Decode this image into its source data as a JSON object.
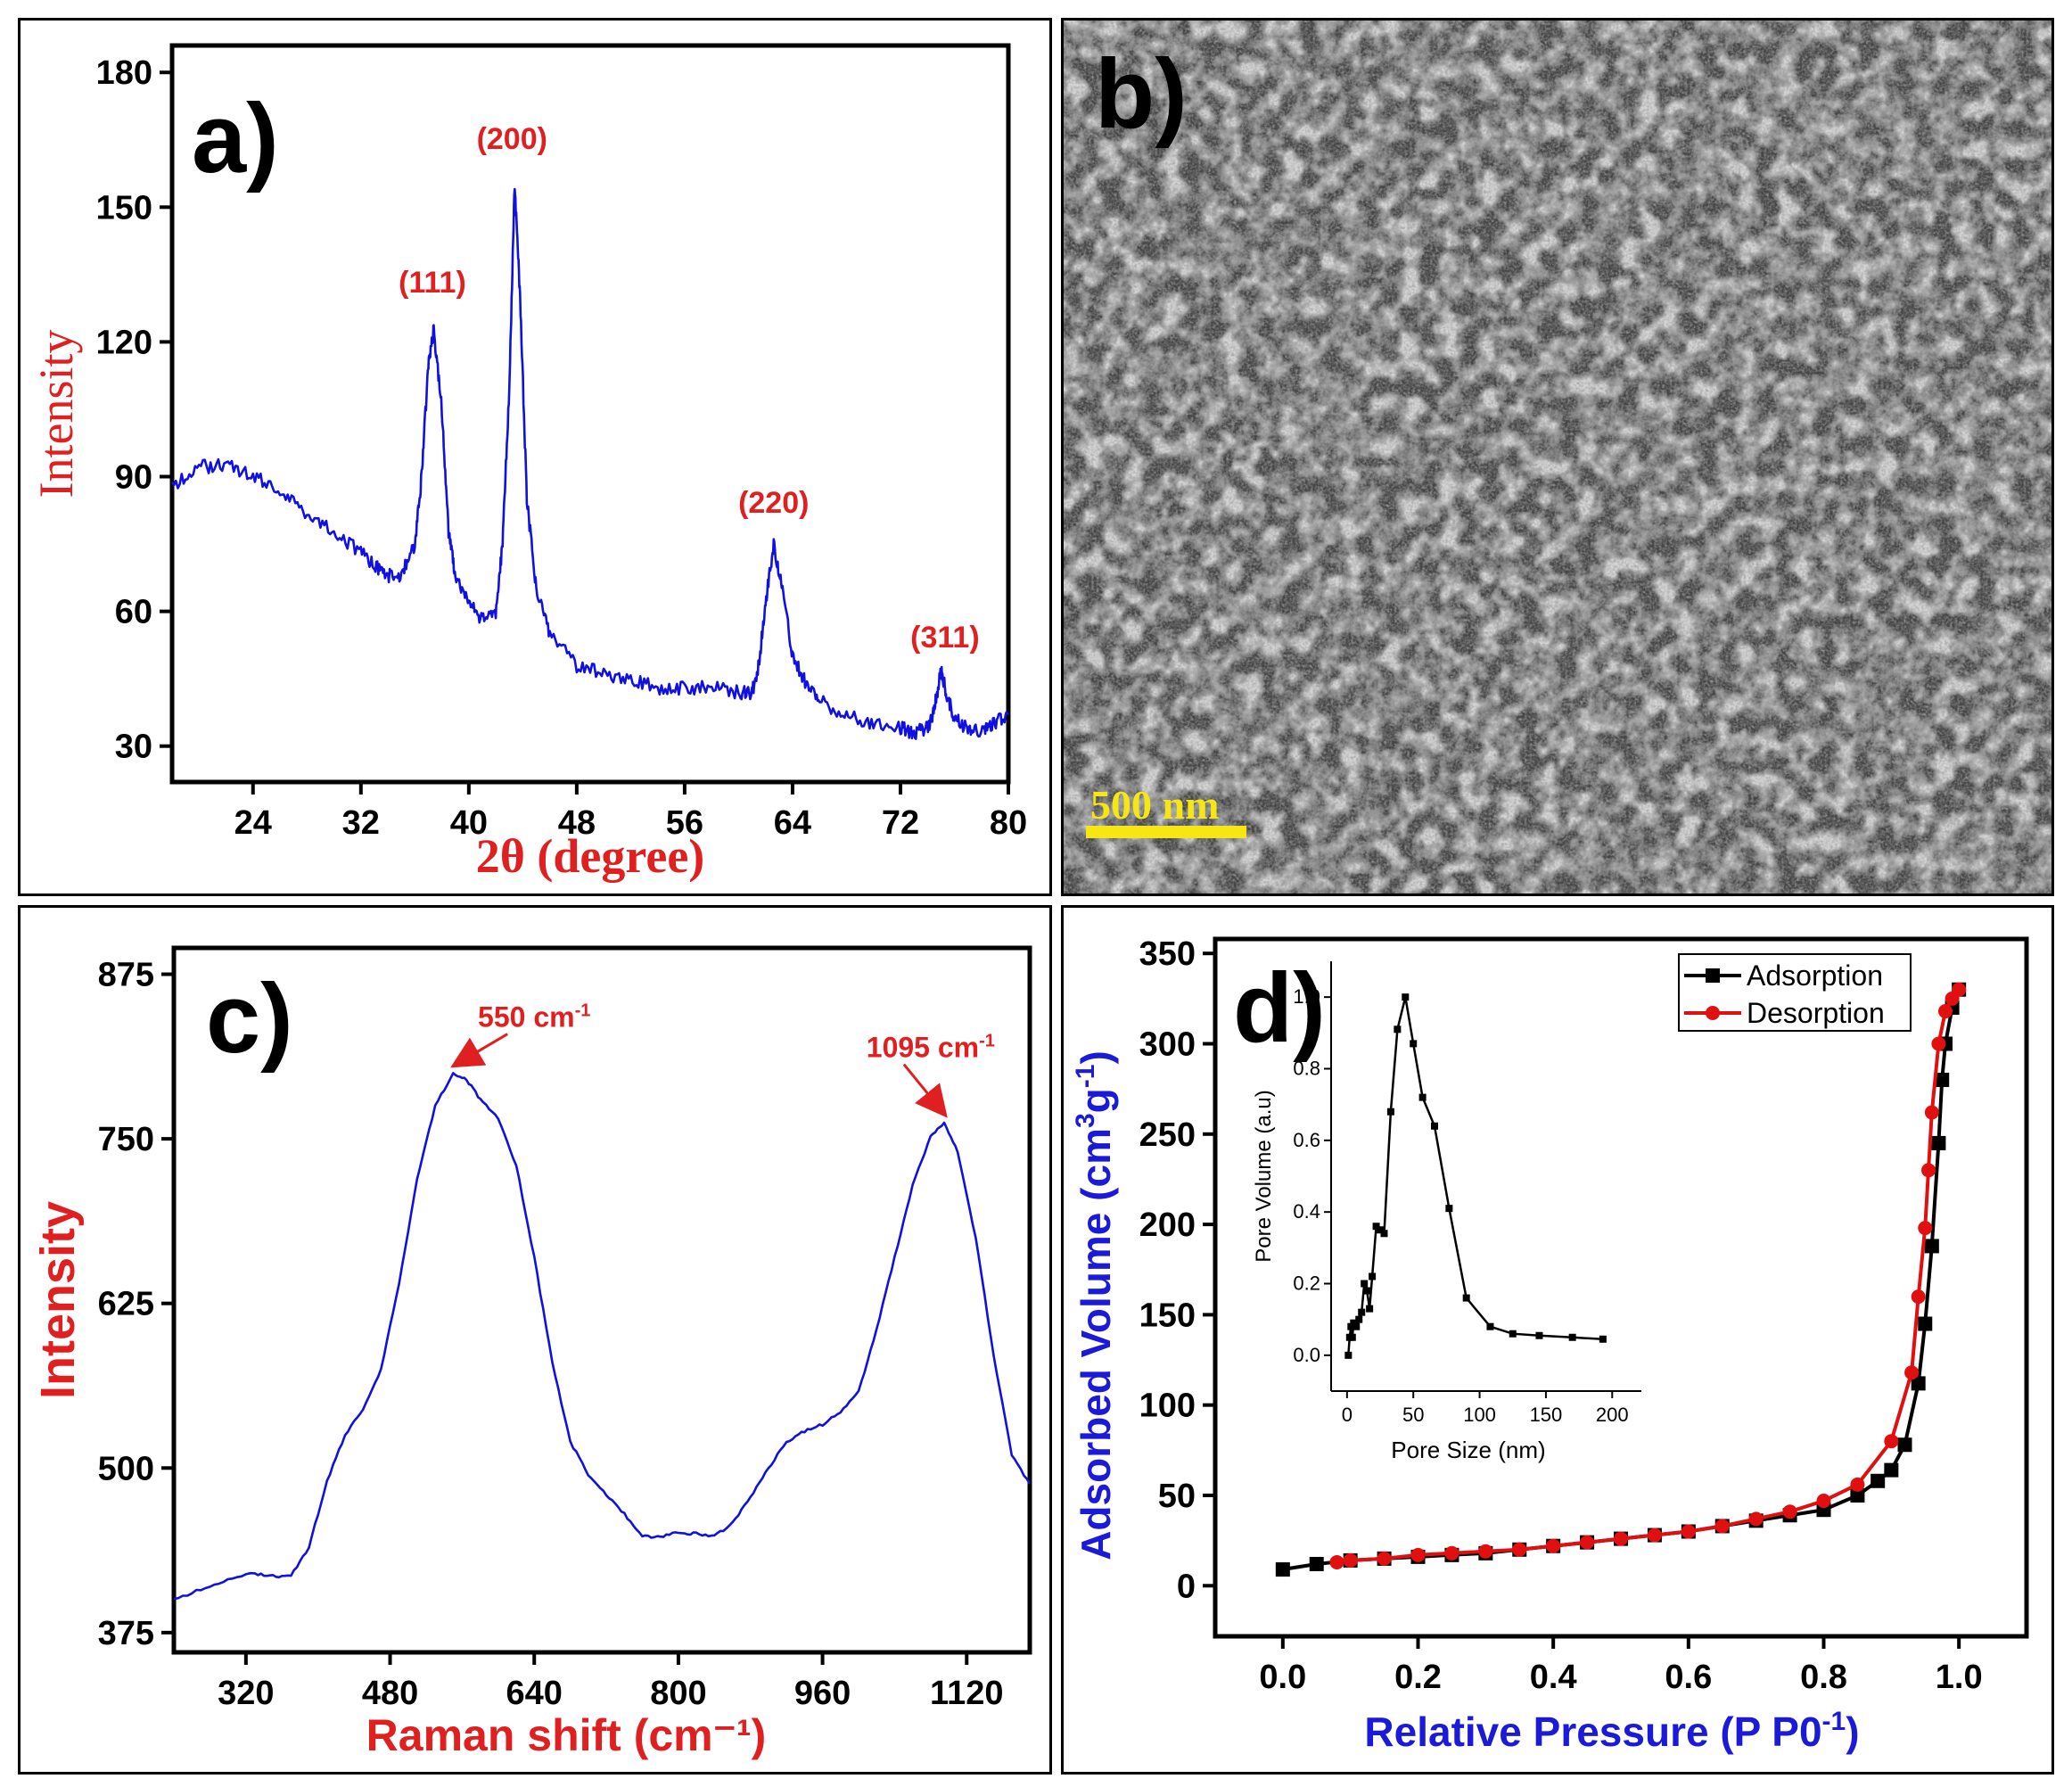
{
  "panels": {
    "a": {
      "letter": "a)"
    },
    "b": {
      "letter": "b)",
      "scale_bar_label": "500 nm",
      "scale_bar_color": "#f5e614"
    },
    "c": {
      "letter": "c)"
    },
    "d": {
      "letter": "d)"
    }
  },
  "chart_data": [
    {
      "id": "a",
      "type": "line",
      "xlabel": "2θ (degree)",
      "ylabel": "Intensity",
      "label_color": "#e02020",
      "line_color": "#1010e0",
      "xlim": [
        18,
        80
      ],
      "ylim": [
        22,
        186
      ],
      "xticks": [
        24,
        32,
        40,
        48,
        56,
        64,
        72,
        80
      ],
      "yticks": [
        30,
        60,
        90,
        120,
        150,
        180
      ],
      "series": [
        {
          "x": [
            18,
            20,
            22,
            24,
            26,
            28,
            30,
            32,
            33,
            34,
            35,
            36,
            36.5,
            37,
            37.4,
            38,
            38.5,
            39,
            40,
            41,
            42,
            42.5,
            43,
            43.4,
            43.8,
            44.3,
            45,
            46,
            48,
            50,
            52,
            54,
            56,
            58,
            60,
            61,
            61.5,
            62,
            62.6,
            63.2,
            64,
            65,
            66,
            68,
            70,
            72,
            73,
            74,
            74.5,
            75,
            75.4,
            76,
            77,
            78,
            79,
            80
          ],
          "y": [
            88,
            92,
            93,
            90,
            87,
            82,
            78,
            73,
            70,
            68,
            68,
            75,
            90,
            115,
            123,
            105,
            78,
            68,
            62,
            58,
            60,
            75,
            110,
            155,
            130,
            85,
            65,
            55,
            48,
            46,
            45,
            43,
            43,
            43,
            42,
            42,
            48,
            62,
            75,
            66,
            50,
            44,
            40,
            37,
            35,
            34,
            33,
            34,
            38,
            47,
            42,
            36,
            34,
            33,
            35,
            37
          ]
        }
      ],
      "annotations": [
        {
          "text": "(111)",
          "x": 37.3,
          "y": 131
        },
        {
          "text": "(200)",
          "x": 43.2,
          "y": 163
        },
        {
          "text": "(220)",
          "x": 62.6,
          "y": 82
        },
        {
          "text": "(311)",
          "x": 75.3,
          "y": 52
        }
      ]
    },
    {
      "id": "c",
      "type": "line",
      "xlabel": "Raman shift (cm⁻¹)",
      "ylabel": "Intensity",
      "label_color": "#e02020",
      "line_color": "#1010e0",
      "xlim": [
        240,
        1190
      ],
      "ylim": [
        360,
        895
      ],
      "xticks": [
        320,
        480,
        640,
        800,
        960,
        1120
      ],
      "yticks": [
        375,
        500,
        625,
        750,
        875
      ],
      "series": [
        {
          "x": [
            240,
            270,
            300,
            330,
            350,
            370,
            390,
            410,
            430,
            450,
            470,
            490,
            510,
            530,
            550,
            565,
            580,
            600,
            620,
            640,
            660,
            680,
            700,
            720,
            740,
            760,
            780,
            800,
            820,
            840,
            860,
            880,
            900,
            920,
            940,
            960,
            980,
            1000,
            1020,
            1040,
            1060,
            1080,
            1095,
            1110,
            1130,
            1150,
            1170,
            1190
          ],
          "y": [
            400,
            408,
            415,
            420,
            418,
            418,
            440,
            490,
            525,
            545,
            575,
            640,
            720,
            775,
            800,
            795,
            780,
            765,
            730,
            660,
            580,
            520,
            495,
            480,
            465,
            448,
            448,
            451,
            450,
            448,
            458,
            478,
            500,
            520,
            528,
            533,
            543,
            558,
            605,
            660,
            715,
            752,
            762,
            740,
            675,
            585,
            510,
            488
          ]
        }
      ],
      "annotations": [
        {
          "text": "550 cm",
          "sup": "-1",
          "x": 640,
          "y": 835,
          "target_x": 552,
          "target_y": 802
        },
        {
          "text": "1095 cm",
          "sup": "-1",
          "x": 1080,
          "y": 812,
          "target_x": 1095,
          "target_y": 765
        }
      ]
    },
    {
      "id": "d",
      "type": "line",
      "xlabel": "Relative Pressure (P P0",
      "xlabel_sup": "-1",
      "xlabel_end": ")",
      "ylabel": "Adsorbed Volume (cm",
      "ylabel_sup1": "3",
      "ylabel_mid": "g",
      "ylabel_sup2": "-1",
      "ylabel_end": ")",
      "label_color": "#1a1ad8",
      "xlim": [
        -0.1,
        1.1
      ],
      "ylim": [
        -28,
        358
      ],
      "xticks": [
        0.0,
        0.2,
        0.4,
        0.6,
        0.8,
        1.0
      ],
      "xtick_labels": [
        "0.0",
        "0.2",
        "0.4",
        "0.6",
        "0.8",
        "1.0"
      ],
      "yticks": [
        0,
        50,
        100,
        150,
        200,
        250,
        300,
        350
      ],
      "legend_position": "top-right",
      "series": [
        {
          "name": "Adsorption",
          "color": "#000000",
          "marker": "square",
          "x": [
            0.0,
            0.05,
            0.1,
            0.15,
            0.2,
            0.25,
            0.3,
            0.35,
            0.4,
            0.45,
            0.5,
            0.55,
            0.6,
            0.65,
            0.7,
            0.75,
            0.8,
            0.85,
            0.88,
            0.9,
            0.92,
            0.94,
            0.95,
            0.96,
            0.97,
            0.975,
            0.98,
            0.99,
            1.0
          ],
          "y": [
            9,
            12,
            14,
            15,
            16,
            17,
            18,
            20,
            22,
            24,
            26,
            28,
            30,
            33,
            36,
            39,
            42,
            50,
            58,
            64,
            78,
            112,
            145,
            188,
            245,
            280,
            300,
            320,
            330
          ]
        },
        {
          "name": "Desorption",
          "color": "#e01010",
          "marker": "circle",
          "x": [
            1.0,
            0.99,
            0.98,
            0.97,
            0.96,
            0.955,
            0.95,
            0.94,
            0.93,
            0.9,
            0.85,
            0.8,
            0.75,
            0.7,
            0.65,
            0.6,
            0.55,
            0.5,
            0.45,
            0.4,
            0.35,
            0.3,
            0.25,
            0.2,
            0.15,
            0.1,
            0.08
          ],
          "y": [
            330,
            325,
            318,
            300,
            262,
            230,
            198,
            160,
            118,
            80,
            56,
            47,
            41,
            37,
            33,
            30,
            28,
            26,
            24,
            22,
            20,
            19,
            18,
            17,
            15,
            14,
            13
          ]
        }
      ],
      "inset": {
        "type": "line",
        "xlabel": "Pore Size (nm)",
        "ylabel": "Pore Volume (a.u)",
        "xlim": [
          -12,
          222
        ],
        "ylim": [
          -0.1,
          1.1
        ],
        "xticks": [
          0,
          50,
          100,
          150,
          200
        ],
        "yticks": [
          0.0,
          0.2,
          0.4,
          0.6,
          0.8,
          1.0
        ],
        "ytick_labels": [
          "0.0",
          "0.2",
          "0.4",
          "0.6",
          "0.8",
          "1.0"
        ],
        "color": "#000000",
        "marker": "square",
        "x": [
          1,
          2,
          3,
          4,
          5,
          7,
          9,
          11,
          13,
          15,
          17,
          19,
          22,
          25,
          28,
          33,
          38,
          44,
          50,
          57,
          66,
          77,
          90,
          108,
          125,
          145,
          170,
          193
        ],
        "y": [
          0.0,
          0.05,
          0.08,
          0.05,
          0.09,
          0.08,
          0.1,
          0.12,
          0.2,
          0.18,
          0.13,
          0.22,
          0.36,
          0.35,
          0.34,
          0.68,
          0.91,
          1.0,
          0.87,
          0.72,
          0.64,
          0.41,
          0.16,
          0.08,
          0.06,
          0.055,
          0.05,
          0.045
        ]
      }
    }
  ]
}
